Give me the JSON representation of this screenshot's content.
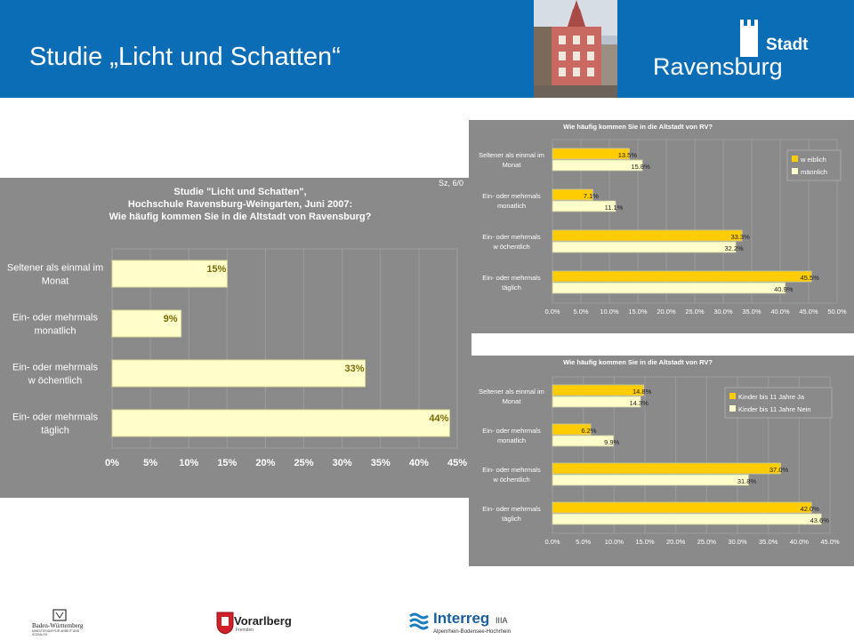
{
  "header": {
    "title": "Studie „Licht und Schatten“",
    "brand_word": "Stadt",
    "brand_city": "Ravensburg"
  },
  "colors": {
    "header_blue": "#0a6db5",
    "panel_gray": "#8a8a8a",
    "bar_cream": "#ffffcc",
    "bar_yellow": "#ffcc00"
  },
  "chart_data": [
    {
      "type": "bar",
      "orientation": "horizontal",
      "title": "Studie \"Licht und Schatten\",\nHochschule Ravensburg-Weingarten, Juni 2007:\nWie häufig kommen Sie in die Altstadt von Ravensburg?",
      "corner_note": "Sz, 6/0",
      "categories": [
        "Seltener als einmal im\nMonat",
        "Ein- oder mehrmals\nmonatlich",
        "Ein- oder mehrmals\nw öchentlich",
        "Ein- oder mehrmals\ntäglich"
      ],
      "series": [
        {
          "values": [
            15,
            9,
            33,
            44
          ]
        }
      ],
      "data_labels": [
        "15%",
        "9%",
        "33%",
        "44%"
      ],
      "xticks": [
        "0%",
        "5%",
        "10%",
        "15%",
        "20%",
        "25%",
        "30%",
        "35%",
        "40%",
        "45%"
      ],
      "xlim": [
        0,
        45
      ]
    },
    {
      "type": "bar",
      "orientation": "horizontal",
      "title": "Wie häufig kommen Sie in die Altstadt von RV?",
      "categories": [
        "Seltener als einmal im\nMonat",
        "Ein- oder mehrmals\nmonatlich",
        "Ein- oder mehrmals\nw öchentlich",
        "Ein- oder mehrmals\ntäglich"
      ],
      "series": [
        {
          "name": "w eiblich",
          "values": [
            13.5,
            7.1,
            33.3,
            45.5
          ],
          "labels": [
            "13.5%",
            "7.1%",
            "33.3%",
            "45.5%"
          ]
        },
        {
          "name": "männlich",
          "values": [
            15.8,
            11.1,
            32.2,
            40.9
          ],
          "labels": [
            "15.8%",
            "11.1%",
            "32.2%",
            "40.9%"
          ]
        }
      ],
      "xticks": [
        "0.0%",
        "5.0%",
        "10.0%",
        "15.0%",
        "20.0%",
        "25.0%",
        "30.0%",
        "35.0%",
        "40.0%",
        "45.0%",
        "50.0%"
      ],
      "xlim": [
        0,
        50
      ],
      "legend_position": "top-right"
    },
    {
      "type": "bar",
      "orientation": "horizontal",
      "title": "Wie häufig kommen Sie in die Altstadt von RV?",
      "categories": [
        "Seltener als einmal im\nMonat",
        "Ein- oder mehrmals\nmonatlich",
        "Ein- oder mehrmals\nw öchentlich",
        "Ein- oder mehrmals\ntäglich"
      ],
      "series": [
        {
          "name": "Kinder bis 11 Jahre Ja",
          "values": [
            14.8,
            6.2,
            37.0,
            42.0
          ],
          "labels": [
            "14.8%",
            "6.2%",
            "37.0%",
            "42.0%"
          ]
        },
        {
          "name": "Kinder bis 11 Jahre Nein",
          "values": [
            14.3,
            9.9,
            31.8,
            43.6
          ],
          "labels": [
            "14.3%",
            "9.9%",
            "31.8%",
            "43.6%"
          ]
        }
      ],
      "xticks": [
        "0.0%",
        "5.0%",
        "10.0%",
        "15.0%",
        "20.0%",
        "25.0%",
        "30.0%",
        "35.0%",
        "40.0%",
        "45.0%"
      ],
      "xlim": [
        0,
        45
      ],
      "legend_position": "top-right"
    }
  ],
  "footer": {
    "logo_bw_name": "Baden-Württemberg",
    "logo_bw_sub": "MINISTERIUM FÜR ARBEIT UND SOZIALES",
    "logo_vbg_name": "Vorarlberg",
    "logo_vbg_sub": "Fremden",
    "logo_interreg_name": "Interreg",
    "logo_interreg_suffix": "IIIA",
    "logo_interreg_sub": "Alpenrhein-Bodensee-Hochrhein"
  }
}
